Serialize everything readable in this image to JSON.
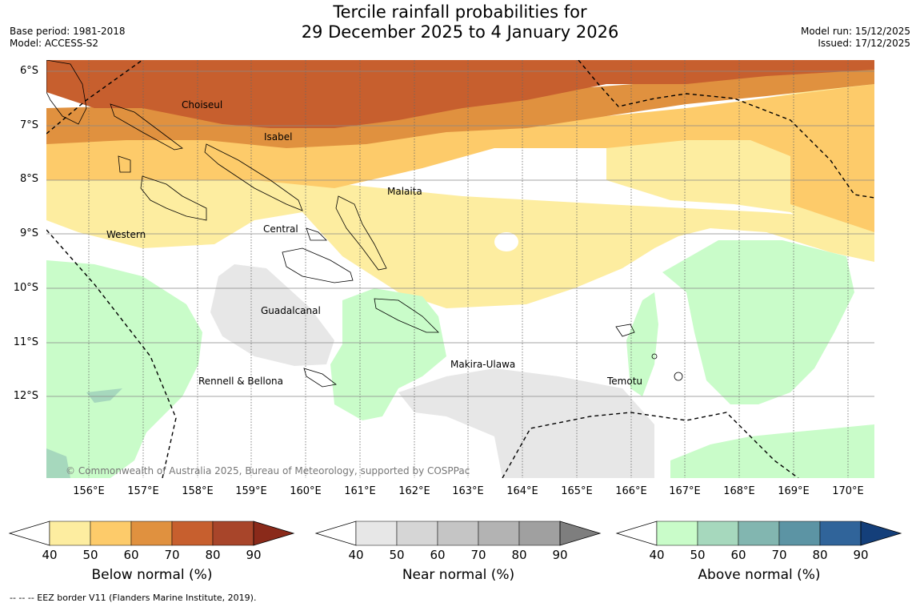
{
  "header": {
    "base_period": "Base period: 1981-2018",
    "model": "Model: ACCESS-S2",
    "title_line1": "Tercile rainfall probabilities for",
    "title_line2": "29 December 2025 to 4 January 2026",
    "model_run": "Model run: 15/12/2025",
    "issued": "Issued: 17/12/2025"
  },
  "map": {
    "lat_labels": [
      "6°S",
      "7°S",
      "8°S",
      "9°S",
      "10°S",
      "11°S",
      "12°S"
    ],
    "lon_labels": [
      "156°E",
      "157°E",
      "158°E",
      "159°E",
      "160°E",
      "161°E",
      "162°E",
      "163°E",
      "164°E",
      "165°E",
      "166°E",
      "167°E",
      "168°E",
      "169°E",
      "170°E"
    ],
    "place_labels": {
      "choiseul": "Choiseul",
      "isabel": "Isabel",
      "malaita": "Malaita",
      "western": "Western",
      "central": "Central",
      "guadalcanal": "Guadalcanal",
      "makira": "Makira-Ulawa",
      "temotu": "Temotu",
      "rennell": "Rennell & Bellona"
    },
    "copyright": "© Commonwealth of Australia 2025, Bureau of Meteorology, supported by COSPPac"
  },
  "colorbars": {
    "below": {
      "label": "Below normal (%)",
      "ticks": [
        "40",
        "50",
        "60",
        "70",
        "80",
        "90"
      ],
      "colors": [
        "#fdeda0",
        "#fdcb6a",
        "#e0913f",
        "#c75f2e",
        "#a8452a",
        "#8a2a1a"
      ]
    },
    "near": {
      "label": "Near normal (%)",
      "ticks": [
        "40",
        "50",
        "60",
        "70",
        "80",
        "90"
      ],
      "colors": [
        "#e7e7e7",
        "#d6d6d6",
        "#c5c5c5",
        "#b3b3b3",
        "#a0a0a0",
        "#7e7e7e"
      ]
    },
    "above": {
      "label": "Above normal (%)",
      "ticks": [
        "40",
        "50",
        "60",
        "70",
        "80",
        "90"
      ],
      "colors": [
        "#c9fcc9",
        "#a6d8bd",
        "#82b6b0",
        "#5c94a4",
        "#30649a",
        "#143f7a"
      ]
    }
  },
  "footer": {
    "eez_note": "--  --  -- EEZ border V11 (Flanders Marine Institute, 2019)."
  }
}
